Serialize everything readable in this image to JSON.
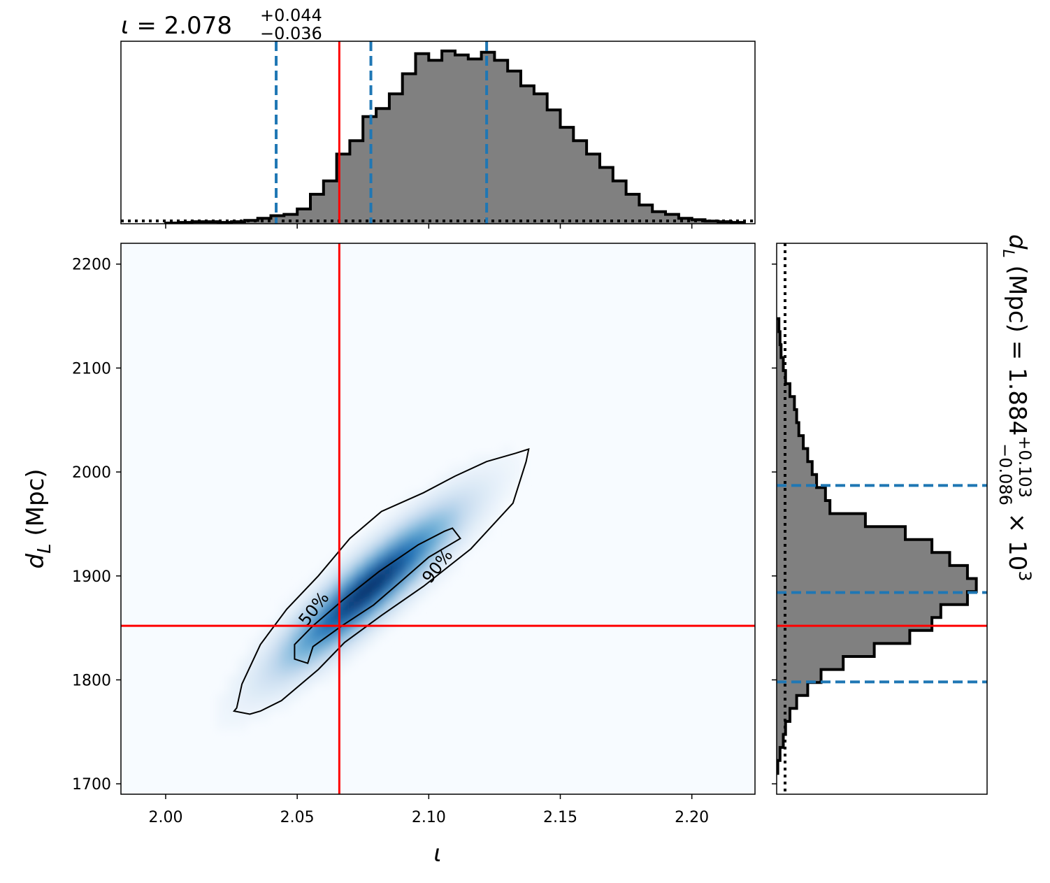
{
  "colors": {
    "truth": "#ff0000",
    "quantile": "#1f77b4",
    "hist_fill": "#808080",
    "hist_edge": "#000000",
    "heatmap_cmap": "Blues"
  },
  "top_panel": {
    "title_symbol": "ι",
    "title_eq": " = 2.078",
    "title_sup": "+0.044",
    "title_sub": "−0.036"
  },
  "right_panel": {
    "label_main": "d",
    "label_sub": "L",
    "label_rest": " (Mpc) = 1.884",
    "label_sup": "+0.103",
    "label_sub2": "−0.086",
    "label_mult": " × 10",
    "label_exp": "3"
  },
  "main_panel": {
    "xlabel": "ι",
    "ylabel_main": "d",
    "ylabel_sub": "L",
    "ylabel_rest": " (Mpc)",
    "contour_labels": [
      "50%",
      "90%"
    ]
  },
  "chart_data": [
    {
      "type": "heatmap",
      "panel": "joint",
      "x_param": "ι",
      "y_param": "d_L (Mpc)",
      "xlim": [
        1.983,
        2.224
      ],
      "ylim": [
        1690,
        2220
      ],
      "xticks": [
        "2.00",
        "2.05",
        "2.10",
        "2.15",
        "2.20"
      ],
      "xtick_values": [
        2.0,
        2.05,
        2.1,
        2.15,
        2.2
      ],
      "yticks": [
        "1700",
        "1800",
        "1900",
        "2000",
        "2100",
        "2200"
      ],
      "ytick_values": [
        1700,
        1800,
        1900,
        2000,
        2100,
        2200
      ],
      "density_peak": [
        2.077,
        1888
      ],
      "density_correlation": 0.9,
      "truth": {
        "x": 2.066,
        "y": 1852
      },
      "contours": [
        {
          "level": "50%",
          "path": [
            [
              2.054,
              1816
            ],
            [
              2.049,
              1820
            ],
            [
              2.049,
              1834
            ],
            [
              2.056,
              1852
            ],
            [
              2.067,
              1876
            ],
            [
              2.081,
              1904
            ],
            [
              2.096,
              1930
            ],
            [
              2.106,
              1943
            ],
            [
              2.109,
              1946
            ],
            [
              2.112,
              1936
            ],
            [
              2.1,
              1918
            ],
            [
              2.09,
              1896
            ],
            [
              2.079,
              1872
            ],
            [
              2.067,
              1852
            ],
            [
              2.056,
              1832
            ]
          ]
        },
        {
          "level": "90%",
          "path": [
            [
              2.027,
              1773
            ],
            [
              2.026,
              1770
            ],
            [
              2.032,
              1767
            ],
            [
              2.036,
              1770
            ],
            [
              2.044,
              1780
            ],
            [
              2.058,
              1810
            ],
            [
              2.068,
              1836
            ],
            [
              2.082,
              1862
            ],
            [
              2.098,
              1890
            ],
            [
              2.116,
              1926
            ],
            [
              2.132,
              1970
            ],
            [
              2.137,
              2010
            ],
            [
              2.138,
              2022
            ],
            [
              2.133,
              2018
            ],
            [
              2.122,
              2010
            ],
            [
              2.11,
              1996
            ],
            [
              2.098,
              1980
            ],
            [
              2.082,
              1962
            ],
            [
              2.07,
              1936
            ],
            [
              2.058,
              1900
            ],
            [
              2.046,
              1868
            ],
            [
              2.036,
              1834
            ],
            [
              2.029,
              1796
            ]
          ]
        }
      ]
    },
    {
      "type": "bar",
      "panel": "marginal-top",
      "param": "ι",
      "xlim": [
        1.983,
        2.224
      ],
      "bin_edges_start": 2.0,
      "bin_width": 0.005,
      "counts": [
        0.5,
        1,
        1.5,
        1.5,
        1,
        1.5,
        2.5,
        4,
        6,
        7,
        11,
        22,
        32,
        52,
        62,
        80,
        86,
        97,
        112,
        127,
        122,
        129,
        126,
        123,
        128,
        122,
        114,
        103,
        97,
        85,
        72,
        62,
        52,
        42,
        32,
        22,
        14,
        9,
        7,
        4,
        3,
        2,
        1.5,
        1
      ],
      "quantiles": [
        2.042,
        2.078,
        2.122
      ],
      "median": 2.078,
      "err_plus": 0.044,
      "err_minus": 0.036,
      "prior_level": 0.04,
      "truth": 2.066
    },
    {
      "type": "bar",
      "panel": "marginal-right",
      "param": "d_L (Mpc)",
      "orientation": "horizontal",
      "ylim": [
        1690,
        2220
      ],
      "bin_edges_start": 1710,
      "bin_width": 12.5,
      "counts": [
        0.5,
        1.5,
        3,
        4,
        6,
        9,
        14,
        20,
        30,
        44,
        60,
        70,
        74,
        86,
        90,
        86,
        78,
        70,
        58,
        40,
        24,
        22,
        18,
        16,
        14,
        12,
        10,
        9,
        8,
        6,
        4,
        3,
        2,
        1.5,
        1
      ],
      "quantiles": [
        1798,
        1884,
        1987
      ],
      "median": 1884,
      "err_plus": 103,
      "err_minus": 86,
      "prior_level": 0.04,
      "truth": 1852
    }
  ]
}
